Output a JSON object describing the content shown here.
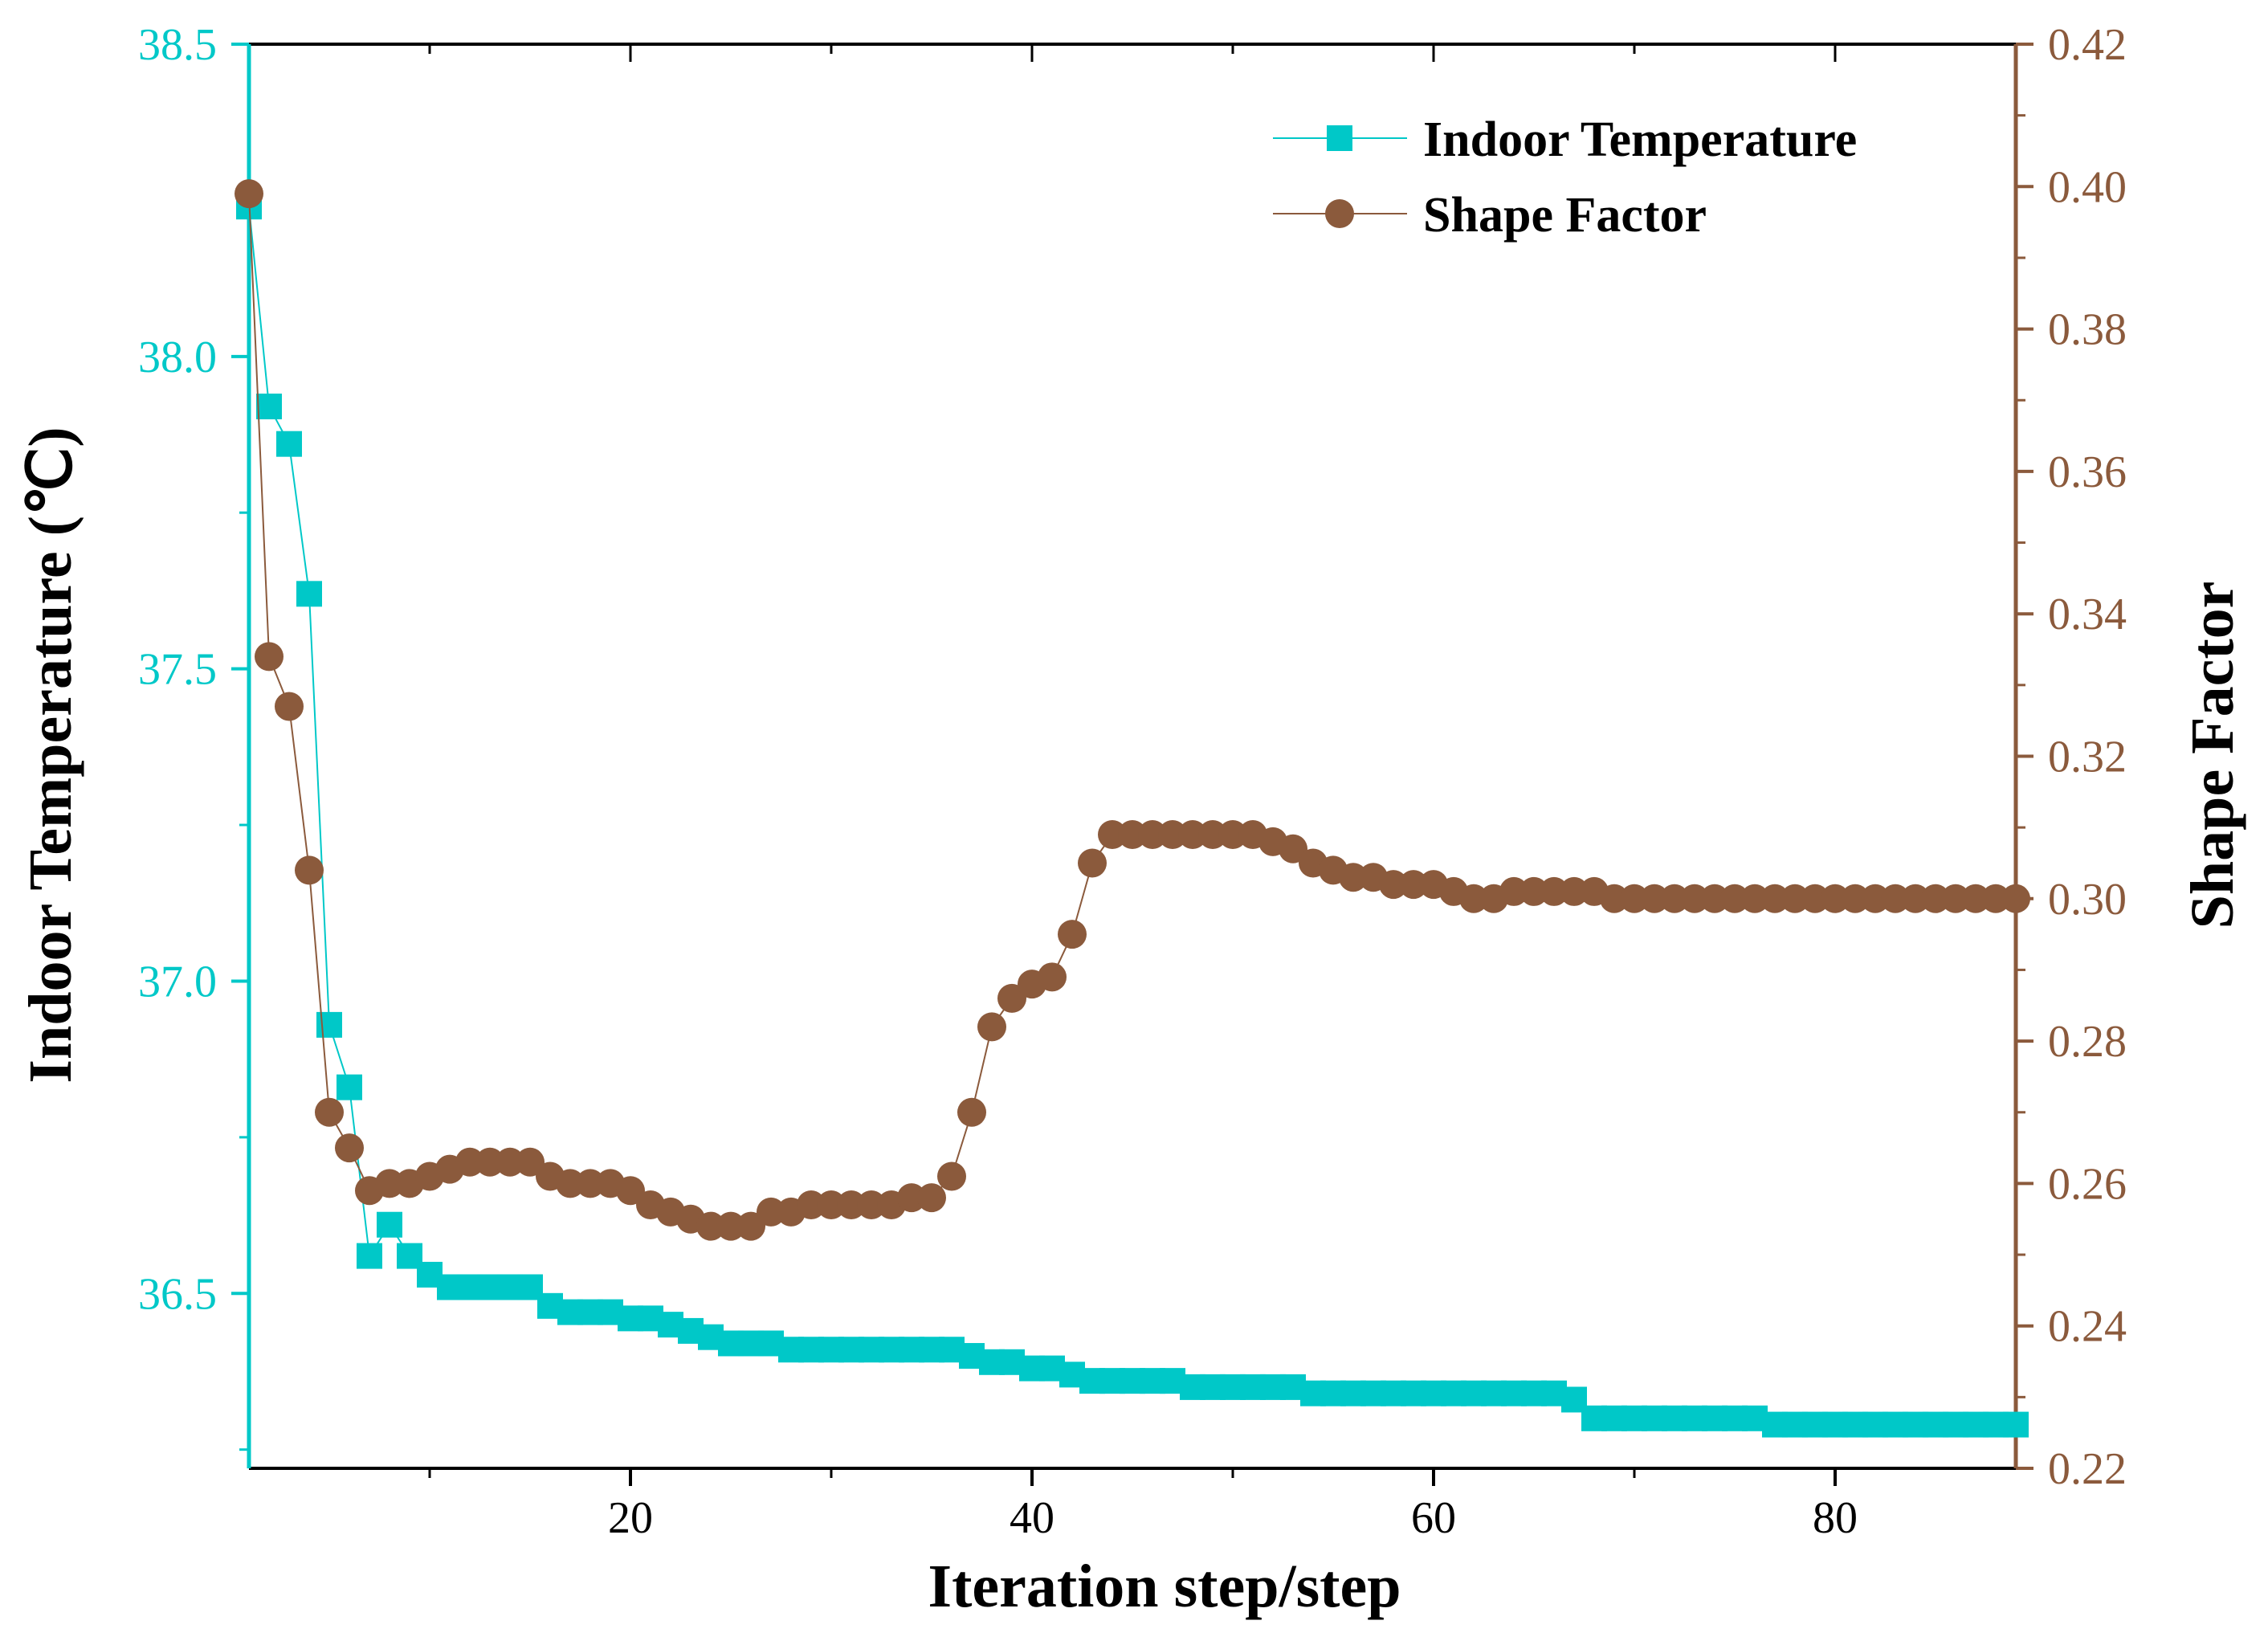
{
  "chart_data": {
    "type": "line",
    "title": "",
    "xlabel": "Iteration step/step",
    "ylabel_left": "Indoor Temperature (℃)",
    "ylabel_right": "Shape Factor",
    "xlim": [
      1,
      89
    ],
    "ylim_left": [
      36.22,
      38.5
    ],
    "ylim_right": [
      0.22,
      0.42
    ],
    "x_ticks": [
      "20",
      "40",
      "60",
      "80"
    ],
    "y_left_ticks": [
      "36.5",
      "37.0",
      "37.5",
      "38.0",
      "38.5"
    ],
    "y_right_ticks": [
      "0.22",
      "0.24",
      "0.26",
      "0.28",
      "0.30",
      "0.32",
      "0.34",
      "0.36",
      "0.38",
      "0.40",
      "0.42"
    ],
    "grid": false,
    "legend_position": "top-right",
    "colors": {
      "temperature": "#00c8c8",
      "shape_factor": "#8b5a3c"
    },
    "x": [
      1,
      2,
      3,
      4,
      5,
      6,
      7,
      8,
      9,
      10,
      11,
      12,
      13,
      14,
      15,
      16,
      17,
      18,
      19,
      20,
      21,
      22,
      23,
      24,
      25,
      26,
      27,
      28,
      29,
      30,
      31,
      32,
      33,
      34,
      35,
      36,
      37,
      38,
      39,
      40,
      41,
      42,
      43,
      44,
      45,
      46,
      47,
      48,
      49,
      50,
      51,
      52,
      53,
      54,
      55,
      56,
      57,
      58,
      59,
      60,
      61,
      62,
      63,
      64,
      65,
      66,
      67,
      68,
      69,
      70,
      71,
      72,
      73,
      74,
      75,
      76,
      77,
      78,
      79,
      80,
      81,
      82,
      83,
      84,
      85,
      86,
      87,
      88,
      89
    ],
    "series": [
      {
        "name": "Indoor Temperature",
        "marker": "square",
        "axis": "left",
        "values": [
          38.24,
          37.92,
          37.86,
          37.62,
          36.93,
          36.83,
          36.56,
          36.61,
          36.56,
          36.53,
          36.51,
          36.51,
          36.51,
          36.51,
          36.51,
          36.48,
          36.47,
          36.47,
          36.47,
          36.46,
          36.46,
          36.45,
          36.44,
          36.43,
          36.42,
          36.42,
          36.42,
          36.41,
          36.41,
          36.41,
          36.41,
          36.41,
          36.41,
          36.41,
          36.41,
          36.41,
          36.4,
          36.39,
          36.39,
          36.38,
          36.38,
          36.37,
          36.36,
          36.36,
          36.36,
          36.36,
          36.36,
          36.35,
          36.35,
          36.35,
          36.35,
          36.35,
          36.35,
          36.34,
          36.34,
          36.34,
          36.34,
          36.34,
          36.34,
          36.34,
          36.34,
          36.34,
          36.34,
          36.34,
          36.34,
          36.34,
          36.33,
          36.3,
          36.3,
          36.3,
          36.3,
          36.3,
          36.3,
          36.3,
          36.3,
          36.3,
          36.29,
          36.29,
          36.29,
          36.29,
          36.29,
          36.29,
          36.29,
          36.29,
          36.29,
          36.29,
          36.29,
          36.29,
          36.29
        ]
      },
      {
        "name": "Shape Factor",
        "marker": "circle",
        "axis": "right",
        "values": [
          0.399,
          0.334,
          0.327,
          0.304,
          0.27,
          0.265,
          0.259,
          0.26,
          0.26,
          0.261,
          0.262,
          0.263,
          0.263,
          0.263,
          0.263,
          0.261,
          0.26,
          0.26,
          0.26,
          0.259,
          0.257,
          0.256,
          0.255,
          0.254,
          0.254,
          0.254,
          0.256,
          0.256,
          0.257,
          0.257,
          0.257,
          0.257,
          0.257,
          0.258,
          0.258,
          0.261,
          0.27,
          0.282,
          0.286,
          0.288,
          0.289,
          0.295,
          0.305,
          0.309,
          0.309,
          0.309,
          0.309,
          0.309,
          0.309,
          0.309,
          0.309,
          0.308,
          0.307,
          0.305,
          0.304,
          0.303,
          0.303,
          0.302,
          0.302,
          0.302,
          0.301,
          0.3,
          0.3,
          0.301,
          0.301,
          0.301,
          0.301,
          0.301,
          0.3,
          0.3,
          0.3,
          0.3,
          0.3,
          0.3,
          0.3,
          0.3,
          0.3,
          0.3,
          0.3,
          0.3,
          0.3,
          0.3,
          0.3,
          0.3,
          0.3,
          0.3,
          0.3,
          0.3,
          0.3
        ]
      }
    ]
  }
}
